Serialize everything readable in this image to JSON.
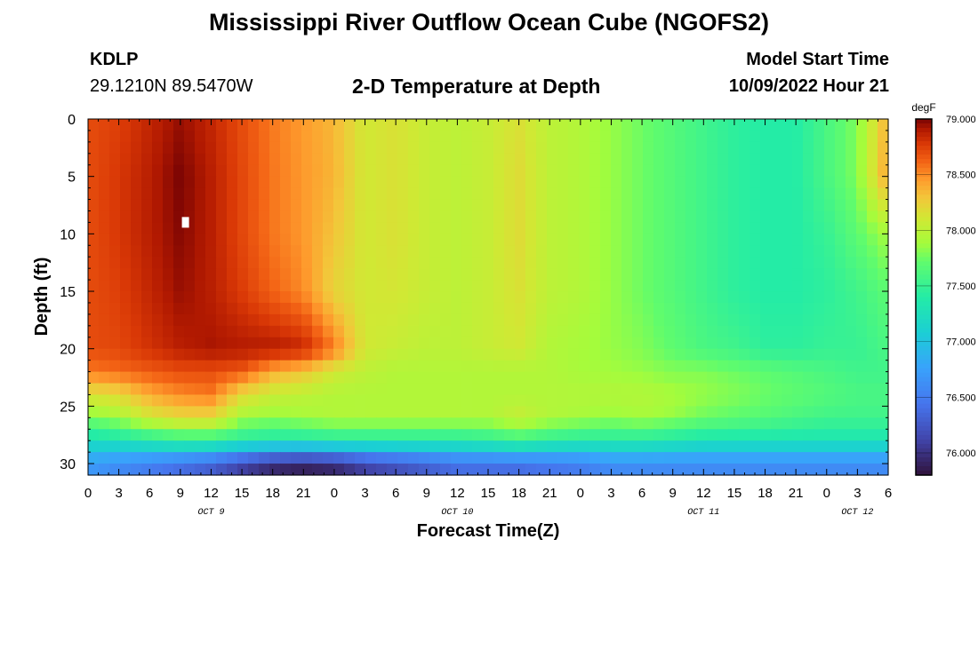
{
  "header": {
    "title": "Mississippi River Outflow Ocean Cube (NGOFS2)",
    "station_id": "KDLP",
    "station_coords": "29.1210N  89.5470W",
    "subtitle": "2-D Temperature at Depth",
    "model_start_label": "Model Start Time",
    "model_start_value": "10/09/2022 Hour 21"
  },
  "footer": {
    "title": "Mississippi River Outflow Ocean Cube (NGOFS2)"
  },
  "chart_data": {
    "type": "heatmap",
    "title": "2-D Temperature at Depth",
    "xlabel": "Forecast Time(Z)",
    "ylabel": "Depth (ft)",
    "x_tick_labels": [
      "0",
      "3",
      "6",
      "9",
      "12",
      "15",
      "18",
      "21",
      "0",
      "3",
      "6",
      "9",
      "12",
      "15",
      "18",
      "21",
      "0",
      "3",
      "6",
      "9",
      "12",
      "15",
      "18",
      "21",
      "0",
      "3",
      "6"
    ],
    "x_ticks_hours": [
      0,
      3,
      6,
      9,
      12,
      15,
      18,
      21,
      24,
      27,
      30,
      33,
      36,
      39,
      42,
      45,
      48,
      51,
      54,
      57,
      60,
      63,
      66,
      69,
      72,
      75,
      78
    ],
    "date_labels": [
      {
        "label": "OCT 9",
        "hour": 12
      },
      {
        "label": "OCT 10",
        "hour": 36
      },
      {
        "label": "OCT 11",
        "hour": 60
      },
      {
        "label": "OCT 12",
        "hour": 75
      }
    ],
    "xlim_hours": [
      0,
      78
    ],
    "y_tick_labels": [
      "0",
      "5",
      "10",
      "15",
      "20",
      "25",
      "30"
    ],
    "y_ticks": [
      0,
      5,
      10,
      15,
      20,
      25,
      30
    ],
    "ylim": [
      0,
      31
    ],
    "y_inverted": true,
    "colorbar": {
      "unit": "degF",
      "min": 75.8,
      "max": 79.0,
      "tick_values": [
        76.0,
        76.5,
        77.0,
        77.5,
        78.0,
        78.5,
        79.0
      ],
      "tick_labels": [
        "76.000",
        "76.500",
        "77.000",
        "77.500",
        "78.000",
        "78.500",
        "79.000"
      ],
      "colormap": "turbo"
    },
    "grid": {
      "x_hours": [
        0,
        3,
        6,
        9,
        12,
        15,
        18,
        21,
        24,
        27,
        30,
        33,
        36,
        39,
        42,
        45,
        48,
        51,
        54,
        57,
        60,
        63,
        66,
        69,
        72,
        75,
        78
      ],
      "depth_ft": [
        0,
        5,
        10,
        15,
        20,
        22,
        24,
        26,
        28,
        30
      ],
      "values_degF": [
        [
          78.7,
          78.75,
          78.85,
          78.95,
          78.85,
          78.7,
          78.55,
          78.45,
          78.35,
          78.1,
          78.15,
          78.05,
          78.0,
          78.05,
          78.15,
          78.0,
          77.95,
          77.85,
          77.75,
          77.65,
          77.55,
          77.45,
          77.4,
          77.4,
          77.6,
          77.8,
          78.4
        ],
        [
          78.7,
          78.78,
          78.88,
          79.0,
          78.88,
          78.72,
          78.56,
          78.46,
          78.36,
          78.1,
          78.15,
          78.05,
          78.0,
          78.05,
          78.18,
          78.0,
          77.95,
          77.85,
          77.75,
          77.65,
          77.55,
          77.45,
          77.4,
          77.4,
          77.6,
          77.8,
          78.45
        ],
        [
          78.7,
          78.78,
          78.88,
          78.98,
          78.88,
          78.72,
          78.56,
          78.46,
          78.3,
          78.1,
          78.15,
          78.05,
          78.0,
          78.05,
          78.18,
          78.0,
          77.95,
          77.85,
          77.75,
          77.65,
          77.55,
          77.45,
          77.4,
          77.4,
          77.5,
          77.7,
          77.9
        ],
        [
          78.7,
          78.75,
          78.85,
          78.95,
          78.88,
          78.76,
          78.62,
          78.5,
          78.22,
          78.1,
          78.12,
          78.05,
          78.0,
          78.05,
          78.15,
          78.0,
          77.95,
          77.85,
          77.75,
          77.65,
          77.55,
          77.45,
          77.4,
          77.4,
          77.45,
          77.55,
          77.7
        ],
        [
          78.7,
          78.72,
          78.8,
          78.88,
          78.92,
          78.9,
          78.9,
          78.85,
          78.55,
          78.1,
          78.05,
          78.0,
          78.0,
          78.05,
          78.1,
          77.95,
          77.9,
          77.85,
          77.8,
          77.7,
          77.6,
          77.55,
          77.45,
          77.45,
          77.5,
          77.5,
          77.6
        ],
        [
          78.55,
          78.6,
          78.65,
          78.7,
          78.7,
          78.65,
          78.4,
          78.3,
          78.1,
          78.0,
          77.95,
          77.95,
          77.95,
          77.95,
          77.95,
          77.95,
          77.9,
          77.88,
          77.85,
          77.8,
          77.8,
          77.75,
          77.7,
          77.65,
          77.6,
          77.55,
          77.55
        ],
        [
          78.15,
          78.2,
          78.4,
          78.5,
          78.55,
          78.2,
          78.05,
          78.0,
          77.95,
          77.95,
          77.95,
          77.95,
          77.95,
          77.95,
          77.95,
          77.95,
          77.95,
          77.95,
          77.95,
          77.9,
          77.85,
          77.8,
          77.75,
          77.7,
          77.65,
          77.6,
          77.6
        ],
        [
          77.8,
          77.9,
          78.1,
          78.2,
          78.2,
          77.9,
          77.85,
          77.9,
          77.95,
          77.95,
          77.95,
          77.95,
          77.95,
          77.95,
          78.05,
          77.95,
          77.9,
          77.85,
          77.9,
          77.85,
          77.75,
          77.7,
          77.65,
          77.6,
          77.55,
          77.55,
          77.55
        ],
        [
          77.25,
          77.3,
          77.4,
          77.5,
          77.5,
          77.4,
          77.35,
          77.35,
          77.4,
          77.4,
          77.4,
          77.4,
          77.4,
          77.45,
          77.55,
          77.45,
          77.4,
          77.4,
          77.4,
          77.35,
          77.3,
          77.3,
          77.3,
          77.3,
          77.3,
          77.3,
          77.3
        ],
        [
          76.7,
          76.6,
          76.5,
          76.4,
          76.3,
          76.1,
          75.95,
          75.9,
          75.95,
          76.1,
          76.2,
          76.3,
          76.4,
          76.4,
          76.4,
          76.45,
          76.5,
          76.6,
          76.6,
          76.6,
          76.6,
          76.6,
          76.6,
          76.6,
          76.6,
          76.6,
          76.6
        ]
      ]
    },
    "marker": {
      "hour": 9.5,
      "depth_ft": 9
    }
  }
}
